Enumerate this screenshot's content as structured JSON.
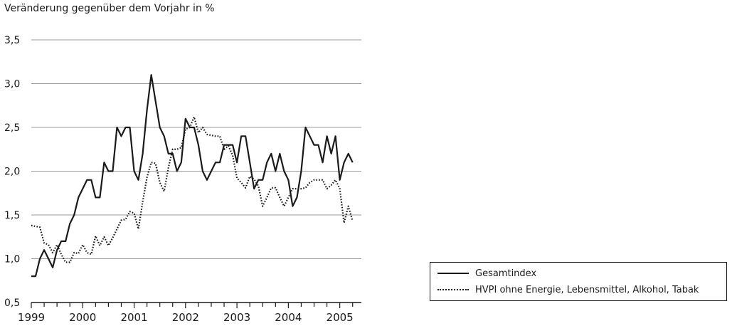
{
  "chart_data": {
    "type": "line",
    "title": "",
    "ylabel": "Veränderung gegenüber dem Vorjahr in %",
    "xlabel": "",
    "ylim": [
      0.5,
      3.5
    ],
    "xlim": [
      1999.0,
      2005.42
    ],
    "yticks": [
      "0,5",
      "1,0",
      "1,5",
      "2,0",
      "2,5",
      "3,0",
      "3,5"
    ],
    "xticks": [
      "1999",
      "2000",
      "2001",
      "2002",
      "2003",
      "2004",
      "2005"
    ],
    "grid": "horizontal",
    "legend_position": "bottom-right",
    "series": [
      {
        "name": "Gesamtindex",
        "style": "solid",
        "color": "#1a1a1a",
        "start": "1999-01",
        "values": [
          0.8,
          0.8,
          1.0,
          1.1,
          1.0,
          0.9,
          1.1,
          1.2,
          1.2,
          1.4,
          1.5,
          1.7,
          1.8,
          1.9,
          1.9,
          1.7,
          1.7,
          2.1,
          2.0,
          2.0,
          2.5,
          2.4,
          2.5,
          2.5,
          2.0,
          1.9,
          2.2,
          2.7,
          3.1,
          2.8,
          2.5,
          2.4,
          2.2,
          2.2,
          2.0,
          2.1,
          2.6,
          2.5,
          2.5,
          2.3,
          2.0,
          1.9,
          2.0,
          2.1,
          2.1,
          2.3,
          2.3,
          2.3,
          2.1,
          2.4,
          2.4,
          2.1,
          1.8,
          1.9,
          1.9,
          2.1,
          2.2,
          2.0,
          2.2,
          2.0,
          1.9,
          1.6,
          1.7,
          2.0,
          2.5,
          2.4,
          2.3,
          2.3,
          2.1,
          2.4,
          2.2,
          2.4,
          1.9,
          2.1,
          2.2,
          2.1
        ]
      },
      {
        "name": "HVPI ohne Energie, Lebensmittel, Alkohol, Tabak",
        "style": "dotted",
        "color": "#1a1a1a",
        "start": "1999-01",
        "values": [
          1.38,
          1.37,
          1.36,
          1.18,
          1.16,
          1.07,
          1.16,
          1.05,
          0.96,
          0.96,
          1.07,
          1.06,
          1.16,
          1.07,
          1.05,
          1.26,
          1.15,
          1.25,
          1.15,
          1.24,
          1.34,
          1.44,
          1.45,
          1.54,
          1.52,
          1.34,
          1.65,
          1.93,
          2.1,
          2.09,
          1.87,
          1.77,
          2.04,
          2.25,
          2.25,
          2.27,
          2.48,
          2.5,
          2.62,
          2.44,
          2.5,
          2.42,
          2.41,
          2.4,
          2.4,
          2.25,
          2.29,
          2.18,
          1.92,
          1.87,
          1.81,
          1.94,
          1.91,
          1.83,
          1.6,
          1.7,
          1.81,
          1.81,
          1.7,
          1.6,
          1.7,
          1.8,
          1.8,
          1.8,
          1.81,
          1.87,
          1.9,
          1.9,
          1.9,
          1.8,
          1.84,
          1.9,
          1.8,
          1.41,
          1.6,
          1.43
        ]
      }
    ]
  }
}
